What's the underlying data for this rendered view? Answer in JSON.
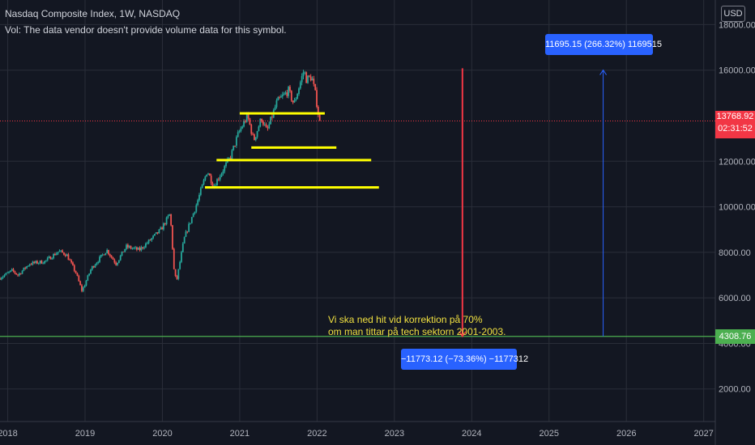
{
  "header": {
    "title": "Nasdaq Composite Index, 1W, NASDAQ",
    "vol_note": "Vol: The data vendor doesn't provide volume data for this symbol."
  },
  "currency_button": "USD",
  "price_tag": {
    "value": "13768.92",
    "countdown": "02:31:52",
    "color": "#f23645"
  },
  "support_tag": {
    "value": "4308.76",
    "color": "#4caf50"
  },
  "measure_up": "11695.15 (266.32%) 1169515",
  "measure_down": "−11773.12 (−73.36%) −1177312",
  "annotation": {
    "line1": "Vi ska ned hit vid korrektion på 70%",
    "line2": "om man tittar på tech sektorn 2001-2003."
  },
  "chart_data": {
    "type": "candlestick",
    "title": "Nasdaq Composite Index, 1W, NASDAQ",
    "xlabel": "",
    "ylabel": "",
    "x_tick_labels": [
      "2018",
      "2019",
      "2020",
      "2021",
      "2022",
      "2023",
      "2024",
      "2025",
      "2026",
      "2027"
    ],
    "y_tick_labels": [
      "2000.00",
      "4000.00",
      "6000.00",
      "8000.00",
      "10000.00",
      "12000.00",
      "16000.00",
      "18000.00"
    ],
    "y_tick_values": [
      2000,
      4000,
      6000,
      8000,
      10000,
      12000,
      16000,
      18000
    ],
    "ylim": [
      570,
      19080
    ],
    "xlim": [
      2017.9,
      2027.15
    ],
    "grid": true,
    "price_path": [
      [
        2017.9,
        6850
      ],
      [
        2018.08,
        7200
      ],
      [
        2018.15,
        7000
      ],
      [
        2018.3,
        7500
      ],
      [
        2018.5,
        7600
      ],
      [
        2018.68,
        8050
      ],
      [
        2018.78,
        7900
      ],
      [
        2018.9,
        7100
      ],
      [
        2018.98,
        6300
      ],
      [
        2019.1,
        7300
      ],
      [
        2019.3,
        8100
      ],
      [
        2019.42,
        7500
      ],
      [
        2019.55,
        8250
      ],
      [
        2019.72,
        8100
      ],
      [
        2019.85,
        8500
      ],
      [
        2020.0,
        9000
      ],
      [
        2020.12,
        9700
      ],
      [
        2020.17,
        7200
      ],
      [
        2020.2,
        6700
      ],
      [
        2020.3,
        8600
      ],
      [
        2020.45,
        10000
      ],
      [
        2020.6,
        11600
      ],
      [
        2020.68,
        10900
      ],
      [
        2020.8,
        11600
      ],
      [
        2020.9,
        12200
      ],
      [
        2021.0,
        13200
      ],
      [
        2021.12,
        14000
      ],
      [
        2021.2,
        12900
      ],
      [
        2021.3,
        13900
      ],
      [
        2021.37,
        13300
      ],
      [
        2021.5,
        14600
      ],
      [
        2021.65,
        15100
      ],
      [
        2021.72,
        14500
      ],
      [
        2021.85,
        16000
      ],
      [
        2021.88,
        15600
      ],
      [
        2021.95,
        15700
      ],
      [
        2022.0,
        14900
      ],
      [
        2022.05,
        13768.92
      ]
    ],
    "horizontal_lines": [
      {
        "price": 14100,
        "x_start": 2021.0,
        "x_end": 2022.1,
        "color": "#ffff00"
      },
      {
        "price": 12600,
        "x_start": 2021.15,
        "x_end": 2022.25,
        "color": "#ffff00"
      },
      {
        "price": 12050,
        "x_start": 2020.7,
        "x_end": 2022.7,
        "color": "#ffff00"
      },
      {
        "price": 10850,
        "x_start": 2020.55,
        "x_end": 2022.8,
        "color": "#ffff00"
      },
      {
        "price": 4308.76,
        "x_start": 2017.9,
        "x_end": 2027.15,
        "color": "#4caf50",
        "label": "4308.76"
      }
    ],
    "last_price": 13768.92,
    "measure_up": {
      "x": 2025.7,
      "from": 4308.76,
      "to": 16003.91,
      "change": 11695.15,
      "percent": 266.32,
      "color": "#2962ff"
    },
    "measure_down": {
      "x": 2023.88,
      "from": 16081.88,
      "to": 4308.76,
      "change": -11773.12,
      "percent": -73.36,
      "color": "#f23645"
    }
  }
}
